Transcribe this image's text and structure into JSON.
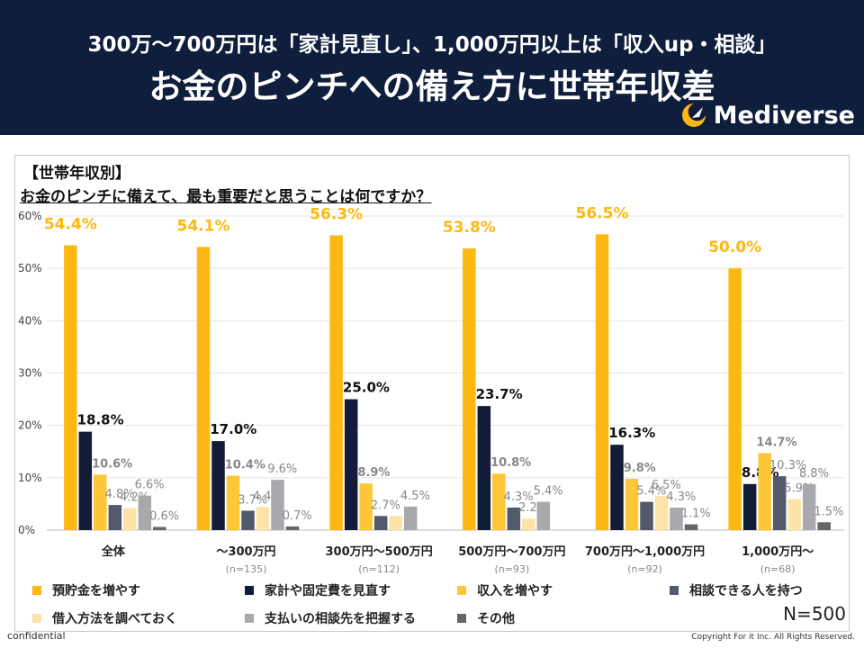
{
  "header": {
    "subtitle": "300万〜700万円は「家計見直し」、1,000万円以上は「収入up・相談」",
    "title": "お金のピンチへの備え方に世帯年収差",
    "brand": "Mediverse"
  },
  "question": {
    "tag": "【世帯年収別】",
    "text": "お金のピンチに備えて、最も重要だと思うことは何ですか？"
  },
  "sample_size": "N=500",
  "footer": {
    "confidential": "confidential",
    "copyright": "Copyright For it Inc. All Rights Reserved."
  },
  "chart_data": {
    "type": "bar",
    "categories": [
      "全体",
      "〜300万円",
      "300万円〜500万円",
      "500万円〜700万円",
      "700万円〜1,000万円",
      "1,000万円〜"
    ],
    "category_notes": [
      "",
      "(n=135)",
      "(n=112)",
      "(n=93)",
      "(n=92)",
      "(n=68)"
    ],
    "ylim": [
      0,
      60
    ],
    "yticks": [
      "0%",
      "10%",
      "20%",
      "30%",
      "40%",
      "50%",
      "60%"
    ],
    "grid": true,
    "legend_position": "bottom",
    "series": [
      {
        "name": "預貯金を増やす",
        "color": "#fdb813",
        "values": [
          54.4,
          54.1,
          56.3,
          53.8,
          56.5,
          50.0
        ],
        "labels": [
          "54.4%",
          "54.1%",
          "56.3%",
          "53.8%",
          "56.5%",
          "50.0%"
        ]
      },
      {
        "name": "家計や固定費を見直す",
        "color": "#131c36",
        "values": [
          18.8,
          17.0,
          25.0,
          23.7,
          16.3,
          8.8
        ],
        "labels": [
          "18.8%",
          "17.0%",
          "25.0%",
          "23.7%",
          "16.3%",
          "8.8%"
        ]
      },
      {
        "name": "収入を増やす",
        "color": "#fdc737",
        "values": [
          10.6,
          10.4,
          8.9,
          10.8,
          9.8,
          14.7
        ],
        "labels": [
          "10.6%",
          "10.4%",
          "8.9%",
          "10.8%",
          "9.8%",
          "14.7%"
        ]
      },
      {
        "name": "相談できる人を持つ",
        "color": "#52596b",
        "values": [
          4.8,
          3.7,
          2.7,
          4.3,
          5.4,
          10.3
        ],
        "labels": [
          "4.8%",
          "3.7%",
          "2.7%",
          "4.3%",
          "5.4%",
          "10.3%"
        ]
      },
      {
        "name": "借入方法を調べておく",
        "color": "#fde3a8",
        "values": [
          4.2,
          4.4,
          2.7,
          2.2,
          6.5,
          5.9
        ],
        "labels": [
          "4.2%",
          "4.4%",
          "",
          "2.2%",
          "6.5%",
          "5.9%"
        ]
      },
      {
        "name": "支払いの相談先を把握する",
        "color": "#a7a9ad",
        "values": [
          6.6,
          9.6,
          4.5,
          5.4,
          4.3,
          8.8
        ],
        "labels": [
          "6.6%",
          "9.6%",
          "4.5%",
          "5.4%",
          "4.3%",
          "8.8%"
        ]
      },
      {
        "name": "その他",
        "color": "#666666",
        "values": [
          0.6,
          0.7,
          0.0,
          0.0,
          1.1,
          1.5
        ],
        "labels": [
          "0.6%",
          "0.7%",
          "",
          "",
          "1.1%",
          "1.5%"
        ]
      }
    ]
  }
}
